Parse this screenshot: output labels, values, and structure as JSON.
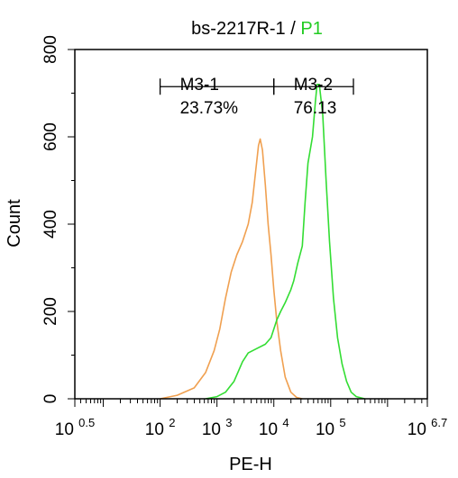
{
  "chart_data": {
    "type": "histogram",
    "title": {
      "sample": "bs-2217R-1",
      "separator": " / ",
      "gate": "P1"
    },
    "xlabel": "PE-H",
    "ylabel": "Count",
    "x_scale": "log10",
    "xlim": [
      0.5,
      6.7
    ],
    "ylim": [
      0,
      800
    ],
    "x_ticks": [
      {
        "base": "10",
        "exp": "0.5",
        "value": 0.5
      },
      {
        "base": "10",
        "exp": "2",
        "value": 2
      },
      {
        "base": "10",
        "exp": "3",
        "value": 3
      },
      {
        "base": "10",
        "exp": "4",
        "value": 4
      },
      {
        "base": "10",
        "exp": "5",
        "value": 5
      },
      {
        "base": "10",
        "exp": "6.7",
        "value": 6.7
      }
    ],
    "y_ticks": [
      "0",
      "200",
      "400",
      "600",
      "800"
    ],
    "series": [
      {
        "color": "#f0a050",
        "points": [
          [
            2.0,
            0
          ],
          [
            2.3,
            8
          ],
          [
            2.6,
            25
          ],
          [
            2.8,
            60
          ],
          [
            2.95,
            110
          ],
          [
            3.05,
            160
          ],
          [
            3.15,
            230
          ],
          [
            3.25,
            290
          ],
          [
            3.35,
            330
          ],
          [
            3.45,
            360
          ],
          [
            3.55,
            400
          ],
          [
            3.62,
            450
          ],
          [
            3.68,
            520
          ],
          [
            3.73,
            580
          ],
          [
            3.76,
            595
          ],
          [
            3.8,
            570
          ],
          [
            3.85,
            490
          ],
          [
            3.9,
            400
          ],
          [
            3.95,
            330
          ],
          [
            4.0,
            250
          ],
          [
            4.05,
            180
          ],
          [
            4.12,
            110
          ],
          [
            4.2,
            50
          ],
          [
            4.3,
            15
          ],
          [
            4.4,
            3
          ],
          [
            4.5,
            0
          ]
        ]
      },
      {
        "color": "#33dd33",
        "points": [
          [
            2.8,
            0
          ],
          [
            3.0,
            5
          ],
          [
            3.15,
            15
          ],
          [
            3.3,
            40
          ],
          [
            3.45,
            85
          ],
          [
            3.55,
            105
          ],
          [
            3.7,
            115
          ],
          [
            3.85,
            125
          ],
          [
            3.95,
            140
          ],
          [
            4.05,
            180
          ],
          [
            4.12,
            200
          ],
          [
            4.2,
            220
          ],
          [
            4.3,
            250
          ],
          [
            4.35,
            270
          ],
          [
            4.42,
            310
          ],
          [
            4.5,
            350
          ],
          [
            4.55,
            450
          ],
          [
            4.6,
            540
          ],
          [
            4.68,
            600
          ],
          [
            4.73,
            680
          ],
          [
            4.76,
            720
          ],
          [
            4.8,
            720
          ],
          [
            4.86,
            650
          ],
          [
            4.92,
            500
          ],
          [
            4.98,
            360
          ],
          [
            5.05,
            230
          ],
          [
            5.12,
            140
          ],
          [
            5.2,
            80
          ],
          [
            5.28,
            40
          ],
          [
            5.36,
            15
          ],
          [
            5.45,
            5
          ],
          [
            5.6,
            0
          ]
        ]
      }
    ],
    "gates": [
      {
        "name": "M3-1",
        "percent": "23.73%",
        "x_range": [
          2.0,
          4.0
        ],
        "y": 715
      },
      {
        "name": "M3-2",
        "percent": "76.13",
        "x_range": [
          4.0,
          5.4
        ],
        "y": 715
      }
    ],
    "colors": {
      "gate_p1": "#22cc22",
      "axis": "#000000"
    }
  }
}
